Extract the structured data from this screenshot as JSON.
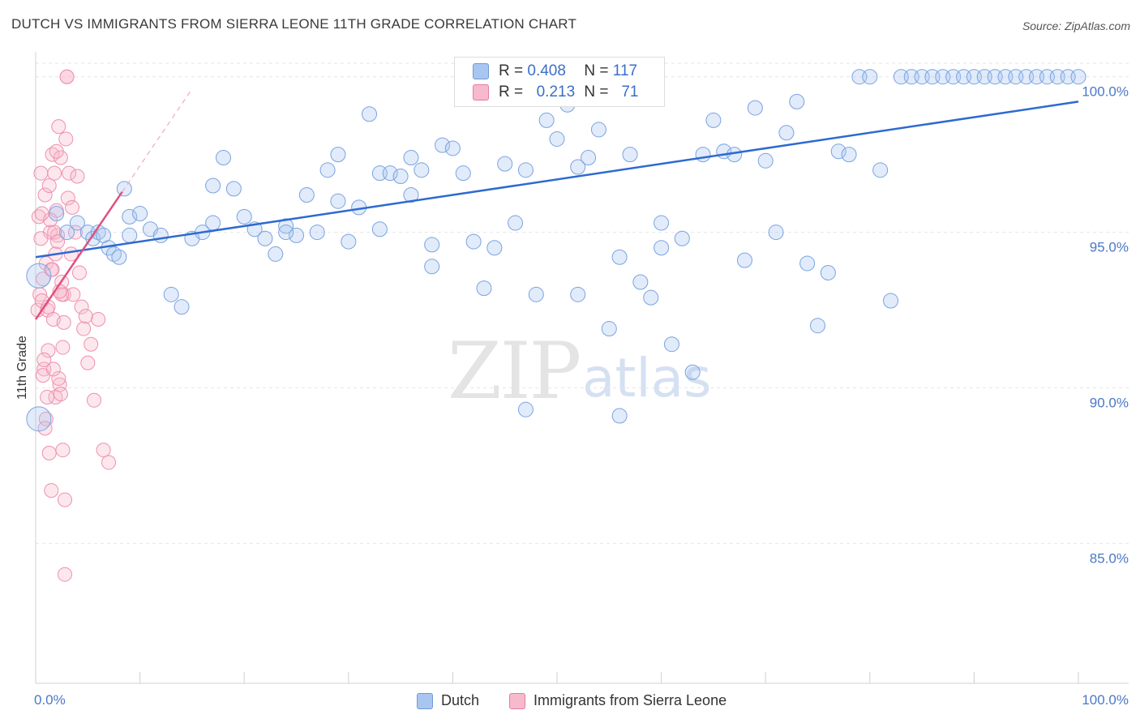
{
  "header": {
    "title": "DUTCH VS IMMIGRANTS FROM SIERRA LEONE 11TH GRADE CORRELATION CHART",
    "source": "Source: ZipAtlas.com"
  },
  "watermark": {
    "zip": "ZIP",
    "atlas": "atlas"
  },
  "legend": {
    "series": [
      {
        "r_label": "R =",
        "r_value": "0.408",
        "n_label": "N =",
        "n_value": "117",
        "color": "#a9c6f0",
        "border": "#6f9ad8"
      },
      {
        "r_label": "R =",
        "r_value": "0.213",
        "n_label": "N =",
        "n_value": "71",
        "color": "#f7b9cc",
        "border": "#e27d9f"
      }
    ]
  },
  "bottom_legend": {
    "items": [
      {
        "label": "Dutch",
        "color": "#a9c6f0",
        "border": "#6f9ad8"
      },
      {
        "label": "Immigrants from Sierra Leone",
        "color": "#f7b9cc",
        "border": "#e27d9f"
      }
    ]
  },
  "chart_data": {
    "type": "scatter",
    "title": "DUTCH VS IMMIGRANTS FROM SIERRA LEONE 11TH GRADE CORRELATION CHART",
    "xlabel": "",
    "ylabel": "11th Grade",
    "xlim": [
      0,
      100
    ],
    "ylim": [
      80.5,
      100.8
    ],
    "x_tick_labels": [
      "0.0%",
      "100.0%"
    ],
    "y_ticks": [
      85,
      90,
      95,
      100
    ],
    "y_tick_labels": [
      "85.0%",
      "90.0%",
      "95.0%",
      "100.0%"
    ],
    "grid": true,
    "series": [
      {
        "name": "Dutch",
        "color": "#7aa3e0",
        "trend": {
          "x": [
            0,
            100
          ],
          "y": [
            94.2,
            99.2
          ],
          "color": "#2e6ad0"
        },
        "x": [
          0.3,
          0.3,
          2,
          4,
          5,
          5.5,
          6,
          6.5,
          7,
          7.5,
          8,
          8.5,
          9,
          10,
          11,
          12,
          13,
          14,
          15,
          16,
          17,
          18,
          19,
          20,
          21,
          22,
          23,
          24,
          25,
          26,
          27,
          28,
          29,
          30,
          31,
          32,
          33,
          34,
          35,
          36,
          37,
          38,
          39,
          40,
          41,
          42,
          43,
          44,
          45,
          46,
          47,
          48,
          49,
          50,
          51,
          52,
          53,
          54,
          55,
          56,
          57,
          58,
          59,
          60,
          61,
          62,
          63,
          64,
          65,
          66,
          67,
          68,
          69,
          70,
          71,
          72,
          73,
          74,
          75,
          76,
          77,
          78,
          79,
          80,
          81,
          82,
          83,
          84,
          85,
          86,
          87,
          88,
          89,
          90,
          91,
          92,
          93,
          94,
          95,
          96,
          97,
          98,
          99,
          100,
          3,
          9,
          17,
          24,
          29,
          33,
          36,
          38,
          43,
          47,
          52,
          56,
          60
        ],
        "y": [
          89.0,
          93.6,
          95.6,
          95.3,
          95.0,
          94.8,
          95.0,
          94.9,
          94.5,
          94.3,
          94.2,
          96.4,
          95.5,
          95.6,
          95.1,
          94.9,
          93.0,
          92.6,
          94.8,
          95.0,
          95.3,
          97.4,
          96.4,
          95.5,
          95.1,
          94.8,
          94.3,
          95.2,
          94.9,
          96.2,
          95.0,
          97.0,
          96.0,
          94.7,
          95.8,
          98.8,
          96.9,
          96.9,
          96.8,
          96.2,
          97.0,
          93.9,
          97.8,
          97.7,
          96.9,
          94.7,
          99.6,
          94.5,
          97.2,
          95.3,
          97.0,
          93.0,
          98.6,
          98.0,
          99.1,
          97.1,
          97.4,
          98.3,
          91.9,
          94.2,
          97.5,
          93.4,
          92.9,
          95.3,
          91.4,
          94.8,
          90.5,
          97.5,
          98.6,
          97.6,
          97.5,
          94.1,
          99.0,
          97.3,
          95.0,
          98.2,
          99.2,
          94.0,
          92.0,
          93.7,
          97.6,
          97.5,
          100.0,
          100.0,
          97.0,
          92.8,
          100.0,
          100.0,
          100.0,
          100.0,
          100.0,
          100.0,
          100.0,
          100.0,
          100.0,
          100.0,
          100.0,
          100.0,
          100.0,
          100.0,
          100.0,
          100.0,
          100.0,
          100.0,
          95.0,
          94.9,
          96.5,
          95.0,
          97.5,
          95.1,
          97.4,
          94.6,
          93.2,
          89.3,
          93.0,
          89.1,
          94.5
        ],
        "values_note_omitted": true
      },
      {
        "name": "Immigrants from Sierra Leone",
        "color": "#ef8fb0",
        "trend": {
          "x": [
            0,
            8.3
          ],
          "y": [
            92.2,
            96.3
          ],
          "color": "#e0507f",
          "dash_extend_to": [
            15,
            100
          ]
        },
        "x": [
          0.2,
          0.3,
          0.4,
          0.5,
          0.6,
          0.7,
          0.8,
          0.9,
          1.0,
          1.1,
          1.2,
          1.3,
          1.4,
          1.5,
          1.6,
          1.7,
          1.8,
          1.9,
          2.0,
          2.1,
          2.2,
          2.3,
          2.4,
          2.5,
          2.6,
          2.7,
          2.8,
          2.9,
          3.0,
          3.2,
          3.4,
          3.6,
          3.8,
          4.0,
          4.2,
          4.4,
          4.6,
          4.8,
          5.0,
          5.3,
          5.6,
          6.0,
          6.5,
          7.0,
          0.5,
          0.7,
          1.0,
          1.2,
          1.4,
          1.6,
          1.8,
          2.0,
          2.2,
          2.4,
          2.6,
          2.8,
          3.0,
          0.6,
          0.9,
          1.3,
          1.7,
          2.1,
          2.5,
          0.8,
          1.1,
          1.5,
          1.9,
          2.3,
          2.7,
          3.1,
          3.5
        ],
        "y": [
          92.5,
          95.5,
          93.0,
          96.9,
          92.8,
          93.5,
          90.6,
          96.2,
          94.0,
          92.5,
          91.2,
          96.5,
          95.0,
          93.8,
          97.5,
          92.2,
          96.9,
          89.7,
          95.7,
          94.9,
          98.4,
          90.1,
          97.4,
          93.4,
          88.0,
          93.0,
          86.4,
          98.0,
          100.0,
          96.9,
          94.3,
          93.0,
          95.0,
          96.8,
          93.7,
          92.6,
          91.9,
          92.3,
          90.8,
          91.4,
          89.6,
          92.2,
          88.0,
          87.6,
          94.8,
          90.4,
          89.0,
          92.6,
          95.4,
          93.8,
          95.0,
          97.6,
          90.3,
          89.8,
          91.3,
          84.0,
          100.0,
          95.6,
          88.7,
          87.9,
          90.6,
          94.7,
          93.0,
          90.9,
          89.7,
          86.7,
          94.3,
          93.1,
          92.1,
          96.1,
          95.8
        ],
        "values_note_omitted": true
      }
    ],
    "legend": "top-center"
  }
}
